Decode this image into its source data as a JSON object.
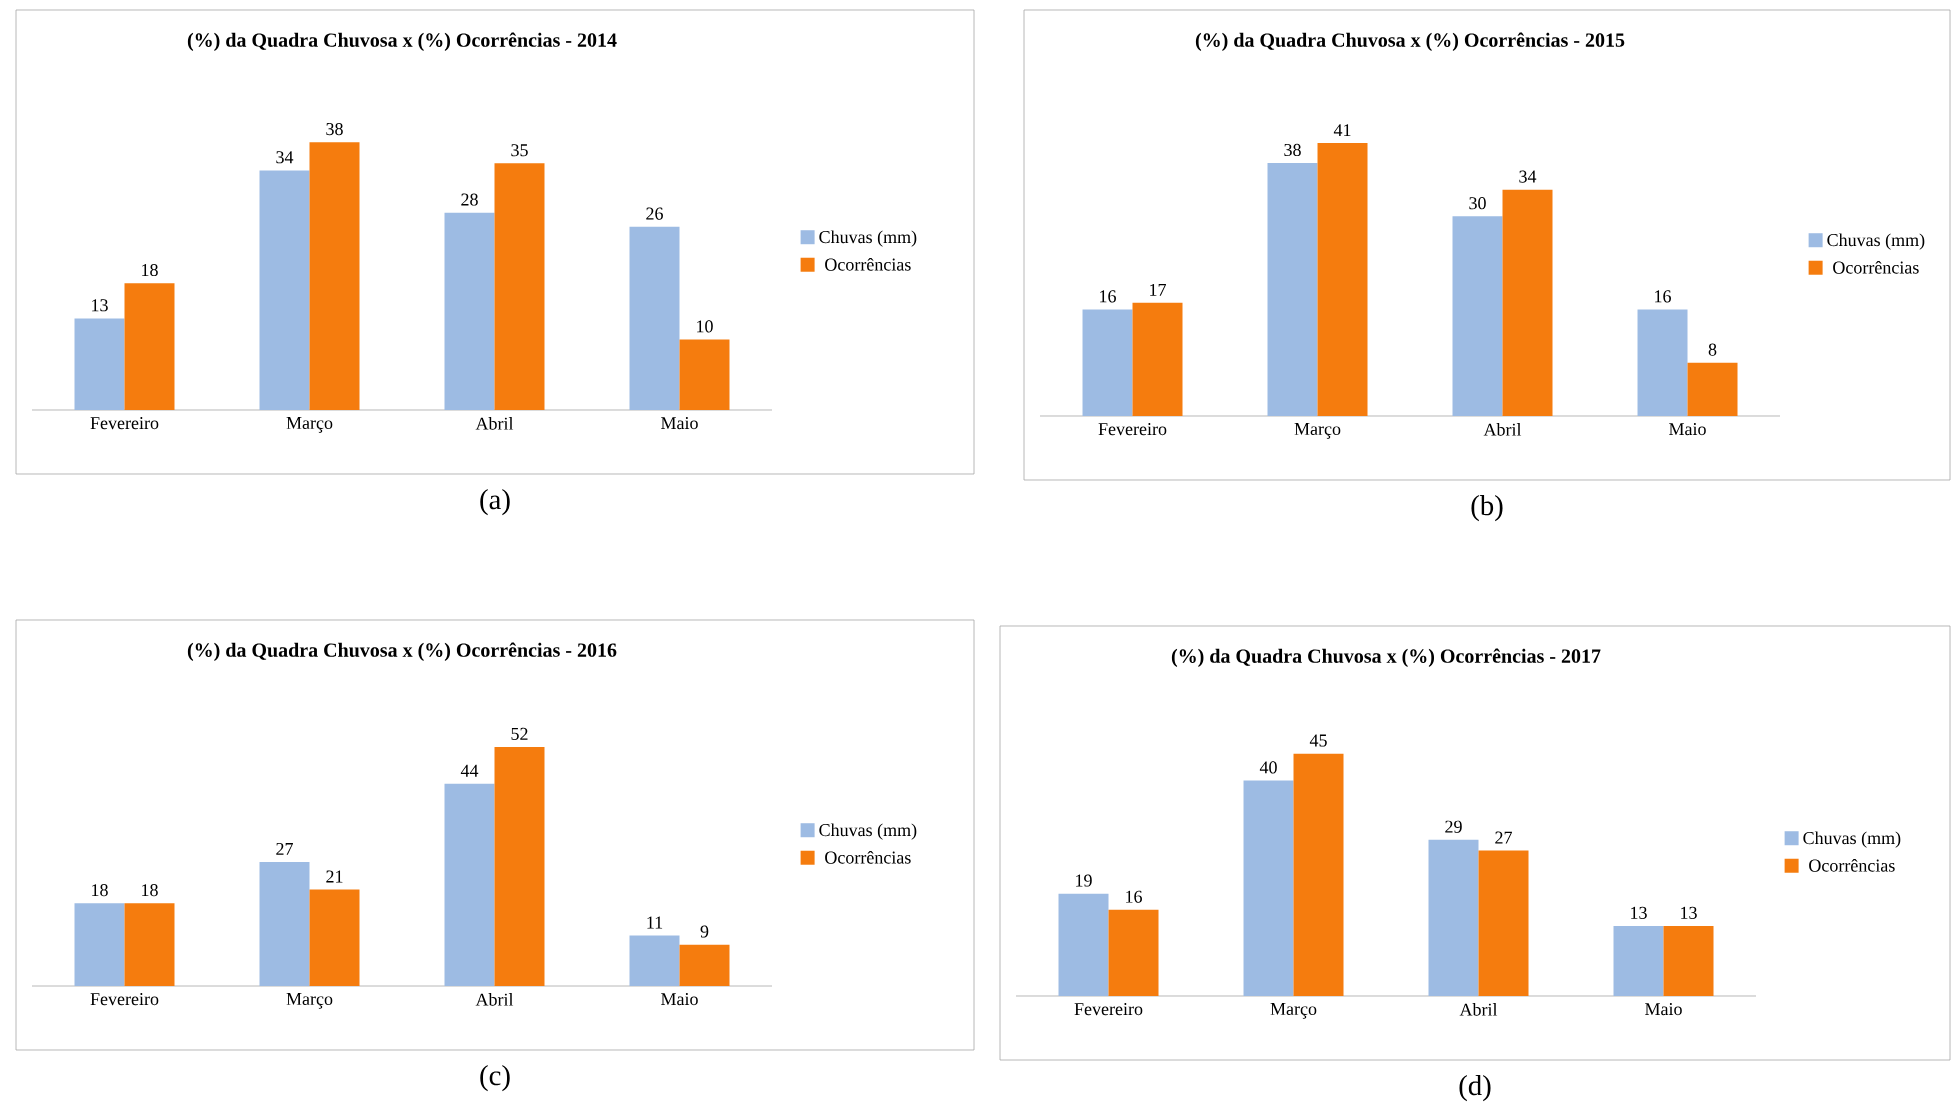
{
  "chart_data": [
    {
      "type": "bar",
      "title": "(%) da Quadra Chuvosa x (%) Ocorrências - 2014",
      "categories": [
        "Fevereiro",
        "Março",
        "Abril",
        "Maio"
      ],
      "series": [
        {
          "name": "Chuvas (mm)",
          "color": "#9dbbe3",
          "values": [
            13,
            34,
            28,
            26
          ]
        },
        {
          "name": "Ocorrências",
          "color": "#f57c0e",
          "values": [
            18,
            38,
            35,
            10
          ]
        }
      ],
      "data_labels": true,
      "legend": "right",
      "annotations": [
        "(a)"
      ]
    },
    {
      "type": "bar",
      "title": "(%) da Quadra Chuvosa x (%) Ocorrências - 2015",
      "categories": [
        "Fevereiro",
        "Março",
        "Abril",
        "Maio"
      ],
      "series": [
        {
          "name": "Chuvas (mm)",
          "color": "#9dbbe3",
          "values": [
            16,
            38,
            30,
            16
          ]
        },
        {
          "name": "Ocorrências",
          "color": "#f57c0e",
          "values": [
            17,
            41,
            34,
            8
          ]
        }
      ],
      "data_labels": true,
      "legend": "right",
      "annotations": [
        "(b)"
      ]
    },
    {
      "type": "bar",
      "title": "(%) da Quadra Chuvosa x (%) Ocorrências - 2016",
      "categories": [
        "Fevereiro",
        "Março",
        "Abril",
        "Maio"
      ],
      "series": [
        {
          "name": "Chuvas (mm)",
          "color": "#9dbbe3",
          "values": [
            18,
            27,
            44,
            11
          ]
        },
        {
          "name": "Ocorrências",
          "color": "#f57c0e",
          "values": [
            18,
            21,
            52,
            9
          ]
        }
      ],
      "data_labels": true,
      "legend": "right",
      "annotations": [
        "(c)"
      ]
    },
    {
      "type": "bar",
      "title": "(%) da Quadra Chuvosa x (%) Ocorrências - 2017",
      "categories": [
        "Fevereiro",
        "Março",
        "Abril",
        "Maio"
      ],
      "series": [
        {
          "name": "Chuvas (mm)",
          "color": "#9dbbe3",
          "values": [
            19,
            40,
            29,
            13
          ]
        },
        {
          "name": "Ocorrências",
          "color": "#f57c0e",
          "values": [
            16,
            45,
            27,
            13
          ]
        }
      ],
      "data_labels": true,
      "legend": "right",
      "annotations": [
        "(d)"
      ]
    }
  ]
}
